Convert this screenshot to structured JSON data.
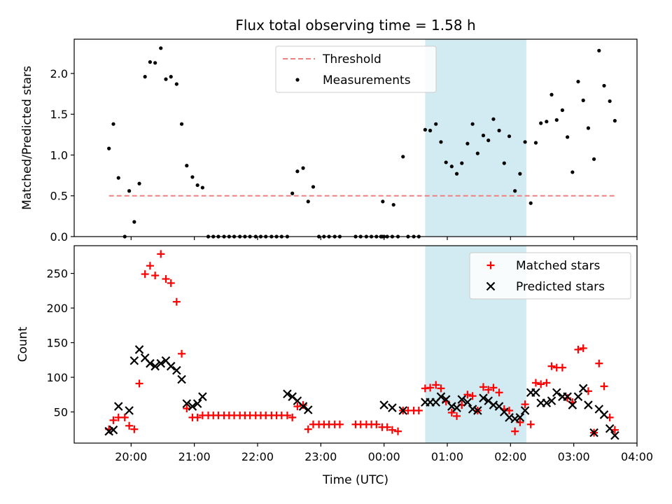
{
  "title": "Flux total observing time = 1.58 h",
  "colors": {
    "threshold": "#f08080",
    "measurement": "#000000",
    "matched": "#ff0000",
    "predicted": "#000000",
    "shade": "#add8e6"
  },
  "chart_data": [
    {
      "type": "scatter",
      "ylabel": "Matched/Predicted stars",
      "xlabel": "",
      "x_unit": "hours since 20:00 UTC",
      "xlim": [
        -0.9,
        8.0
      ],
      "ylim": [
        0,
        2.42
      ],
      "yticks": [
        0.0,
        0.5,
        1.0,
        1.5,
        2.0
      ],
      "ytick_labels": [
        "0.0",
        "0.5",
        "1.0",
        "1.5",
        "2.0"
      ],
      "shaded_interval": [
        4.65,
        6.25
      ],
      "threshold": {
        "label": "Threshold",
        "value": 0.5,
        "x_range": [
          -0.35,
          7.65
        ]
      },
      "legend": {
        "position": "top-center",
        "entries": [
          "Threshold",
          "Measurements"
        ]
      },
      "series": [
        {
          "name": "Measurements",
          "points": [
            [
              -0.35,
              1.08
            ],
            [
              -0.28,
              1.38
            ],
            [
              -0.2,
              0.72
            ],
            [
              -0.1,
              0.0
            ],
            [
              -0.03,
              0.56
            ],
            [
              0.05,
              0.18
            ],
            [
              0.13,
              0.65
            ],
            [
              0.22,
              1.96
            ],
            [
              0.3,
              2.14
            ],
            [
              0.38,
              2.13
            ],
            [
              0.47,
              2.31
            ],
            [
              0.55,
              1.93
            ],
            [
              0.63,
              1.96
            ],
            [
              0.72,
              1.87
            ],
            [
              0.8,
              1.38
            ],
            [
              0.88,
              0.87
            ],
            [
              0.97,
              0.73
            ],
            [
              1.05,
              0.63
            ],
            [
              1.13,
              0.6
            ],
            [
              1.22,
              0.0
            ],
            [
              1.3,
              0.0
            ],
            [
              1.38,
              0.0
            ],
            [
              1.47,
              0.0
            ],
            [
              1.55,
              0.0
            ],
            [
              1.63,
              0.0
            ],
            [
              1.72,
              0.0
            ],
            [
              1.8,
              0.0
            ],
            [
              1.88,
              0.0
            ],
            [
              1.97,
              0.0
            ],
            [
              2.05,
              0.0
            ],
            [
              2.13,
              0.0
            ],
            [
              2.22,
              0.0
            ],
            [
              2.3,
              0.0
            ],
            [
              2.38,
              0.0
            ],
            [
              2.47,
              0.0
            ],
            [
              2.55,
              0.53
            ],
            [
              2.63,
              0.8
            ],
            [
              2.72,
              0.84
            ],
            [
              2.8,
              0.43
            ],
            [
              2.88,
              0.61
            ],
            [
              2.97,
              0.0
            ],
            [
              3.05,
              0.0
            ],
            [
              3.13,
              0.0
            ],
            [
              3.22,
              0.0
            ],
            [
              3.3,
              0.0
            ],
            [
              3.55,
              0.0
            ],
            [
              3.63,
              0.0
            ],
            [
              3.72,
              0.0
            ],
            [
              3.8,
              0.0
            ],
            [
              3.88,
              0.0
            ],
            [
              3.97,
              0.0
            ],
            [
              4.05,
              0.0
            ],
            [
              4.13,
              0.0
            ],
            [
              4.22,
              0.0
            ],
            [
              4.3,
              0.98
            ],
            [
              4.38,
              0.0
            ],
            [
              4.47,
              0.0
            ],
            [
              4.55,
              0.0
            ],
            [
              4.65,
              1.31
            ],
            [
              4.73,
              1.3
            ],
            [
              4.82,
              1.38
            ],
            [
              4.9,
              1.16
            ],
            [
              4.98,
              0.91
            ],
            [
              5.07,
              0.86
            ],
            [
              5.15,
              0.77
            ],
            [
              5.23,
              0.9
            ],
            [
              5.32,
              1.14
            ],
            [
              5.4,
              1.38
            ],
            [
              5.48,
              1.02
            ],
            [
              5.57,
              1.24
            ],
            [
              5.65,
              1.18
            ],
            [
              5.73,
              1.44
            ],
            [
              5.82,
              1.3
            ],
            [
              5.9,
              0.9
            ],
            [
              5.98,
              1.23
            ],
            [
              6.07,
              0.56
            ],
            [
              6.15,
              0.77
            ],
            [
              6.23,
              1.16
            ],
            [
              6.32,
              0.41
            ],
            [
              6.4,
              1.15
            ],
            [
              6.48,
              1.39
            ],
            [
              6.57,
              1.41
            ],
            [
              6.65,
              1.74
            ],
            [
              6.73,
              1.43
            ],
            [
              6.82,
              1.55
            ],
            [
              6.9,
              1.22
            ],
            [
              6.98,
              0.79
            ],
            [
              7.07,
              1.9
            ],
            [
              7.15,
              1.67
            ],
            [
              7.23,
              1.33
            ],
            [
              7.32,
              0.95
            ],
            [
              7.4,
              2.28
            ],
            [
              7.48,
              1.85
            ],
            [
              7.57,
              1.66
            ],
            [
              7.65,
              1.42
            ],
            [
              4.0,
              0.0
            ],
            [
              3.95,
              0.0
            ],
            [
              3.98,
              0.43
            ],
            [
              4.15,
              0.39
            ]
          ]
        }
      ]
    },
    {
      "type": "scatter",
      "ylabel": "Count",
      "xlabel": "Time (UTC)",
      "x_unit": "hours since 20:00 UTC",
      "xlim": [
        -0.9,
        8.0
      ],
      "ylim": [
        5,
        290
      ],
      "yticks": [
        50,
        100,
        150,
        200,
        250
      ],
      "ytick_labels": [
        "50",
        "100",
        "150",
        "200",
        "250"
      ],
      "xticks": [
        0,
        1,
        2,
        3,
        4,
        5,
        6,
        7,
        8
      ],
      "xtick_labels": [
        "20:00",
        "21:00",
        "22:00",
        "23:00",
        "00:00",
        "01:00",
        "02:00",
        "03:00",
        "04:00"
      ],
      "shaded_interval": [
        4.65,
        6.25
      ],
      "legend": {
        "position": "top-right",
        "entries": [
          "Matched stars",
          "Predicted stars"
        ]
      },
      "series": [
        {
          "name": "Matched stars",
          "marker": "plus",
          "points": [
            [
              -0.35,
              25
            ],
            [
              -0.28,
              38
            ],
            [
              -0.2,
              42
            ],
            [
              -0.1,
              42
            ],
            [
              -0.03,
              30
            ],
            [
              0.05,
              25
            ],
            [
              0.13,
              91
            ],
            [
              0.22,
              249
            ],
            [
              0.3,
              261
            ],
            [
              0.38,
              247
            ],
            [
              0.47,
              278
            ],
            [
              0.55,
              242
            ],
            [
              0.63,
              236
            ],
            [
              0.72,
              209
            ],
            [
              0.8,
              134
            ],
            [
              0.88,
              55
            ],
            [
              0.97,
              42
            ],
            [
              1.05,
              42
            ],
            [
              1.13,
              45
            ],
            [
              1.22,
              45
            ],
            [
              1.3,
              45
            ],
            [
              1.38,
              45
            ],
            [
              1.47,
              45
            ],
            [
              1.55,
              45
            ],
            [
              1.63,
              45
            ],
            [
              1.72,
              45
            ],
            [
              1.8,
              45
            ],
            [
              1.88,
              45
            ],
            [
              1.97,
              45
            ],
            [
              2.05,
              45
            ],
            [
              2.13,
              45
            ],
            [
              2.22,
              45
            ],
            [
              2.3,
              45
            ],
            [
              2.38,
              45
            ],
            [
              2.47,
              45
            ],
            [
              2.55,
              42
            ],
            [
              2.63,
              58
            ],
            [
              2.72,
              60
            ],
            [
              2.8,
              25
            ],
            [
              2.88,
              32
            ],
            [
              2.97,
              32
            ],
            [
              3.05,
              32
            ],
            [
              3.13,
              32
            ],
            [
              3.22,
              32
            ],
            [
              3.3,
              32
            ],
            [
              3.55,
              32
            ],
            [
              3.63,
              32
            ],
            [
              3.72,
              32
            ],
            [
              3.8,
              32
            ],
            [
              3.88,
              32
            ],
            [
              3.97,
              28
            ],
            [
              4.05,
              28
            ],
            [
              4.13,
              24
            ],
            [
              4.22,
              22
            ],
            [
              4.3,
              52
            ],
            [
              4.38,
              52
            ],
            [
              4.47,
              52
            ],
            [
              4.55,
              52
            ],
            [
              4.65,
              84
            ],
            [
              4.73,
              85
            ],
            [
              4.82,
              89
            ],
            [
              4.9,
              84
            ],
            [
              4.98,
              65
            ],
            [
              5.07,
              49
            ],
            [
              5.15,
              44
            ],
            [
              5.23,
              60
            ],
            [
              5.32,
              75
            ],
            [
              5.4,
              73
            ],
            [
              5.48,
              52
            ],
            [
              5.57,
              86
            ],
            [
              5.65,
              82
            ],
            [
              5.73,
              85
            ],
            [
              5.82,
              78
            ],
            [
              5.9,
              54
            ],
            [
              5.98,
              52
            ],
            [
              6.07,
              22
            ],
            [
              6.15,
              35
            ],
            [
              6.23,
              61
            ],
            [
              6.32,
              32
            ],
            [
              6.4,
              92
            ],
            [
              6.48,
              90
            ],
            [
              6.57,
              92
            ],
            [
              6.65,
              116
            ],
            [
              6.73,
              114
            ],
            [
              6.82,
              114
            ],
            [
              6.9,
              70
            ],
            [
              6.98,
              64
            ],
            [
              7.07,
              140
            ],
            [
              7.15,
              142
            ],
            [
              7.23,
              80
            ],
            [
              7.32,
              20
            ],
            [
              7.4,
              120
            ],
            [
              7.48,
              87
            ],
            [
              7.57,
              42
            ],
            [
              7.65,
              24
            ]
          ]
        },
        {
          "name": "Predicted stars",
          "marker": "x",
          "points": [
            [
              -0.35,
              22
            ],
            [
              -0.28,
              24
            ],
            [
              -0.2,
              58
            ],
            [
              -0.03,
              52
            ],
            [
              0.05,
              124
            ],
            [
              0.13,
              140
            ],
            [
              0.22,
              128
            ],
            [
              0.3,
              120
            ],
            [
              0.38,
              116
            ],
            [
              0.47,
              120
            ],
            [
              0.55,
              124
            ],
            [
              0.63,
              116
            ],
            [
              0.72,
              110
            ],
            [
              0.8,
              97
            ],
            [
              0.88,
              62
            ],
            [
              0.97,
              58
            ],
            [
              1.05,
              62
            ],
            [
              1.13,
              72
            ],
            [
              2.47,
              76
            ],
            [
              2.55,
              72
            ],
            [
              2.63,
              66
            ],
            [
              2.72,
              58
            ],
            [
              2.8,
              53
            ],
            [
              4.0,
              60
            ],
            [
              4.13,
              56
            ],
            [
              4.3,
              52
            ],
            [
              4.65,
              64
            ],
            [
              4.73,
              64
            ],
            [
              4.82,
              64
            ],
            [
              4.9,
              72
            ],
            [
              4.98,
              68
            ],
            [
              5.07,
              58
            ],
            [
              5.15,
              56
            ],
            [
              5.23,
              68
            ],
            [
              5.32,
              64
            ],
            [
              5.4,
              54
            ],
            [
              5.48,
              52
            ],
            [
              5.57,
              70
            ],
            [
              5.65,
              66
            ],
            [
              5.73,
              60
            ],
            [
              5.82,
              58
            ],
            [
              5.9,
              50
            ],
            [
              5.98,
              42
            ],
            [
              6.07,
              40
            ],
            [
              6.15,
              42
            ],
            [
              6.23,
              52
            ],
            [
              6.32,
              78
            ],
            [
              6.4,
              78
            ],
            [
              6.48,
              63
            ],
            [
              6.57,
              63
            ],
            [
              6.65,
              66
            ],
            [
              6.73,
              78
            ],
            [
              6.82,
              72
            ],
            [
              6.9,
              72
            ],
            [
              6.98,
              60
            ],
            [
              7.07,
              72
            ],
            [
              7.15,
              84
            ],
            [
              7.23,
              60
            ],
            [
              7.32,
              20
            ],
            [
              7.4,
              54
            ],
            [
              7.48,
              46
            ],
            [
              7.57,
              26
            ],
            [
              7.65,
              16
            ]
          ]
        }
      ]
    }
  ]
}
